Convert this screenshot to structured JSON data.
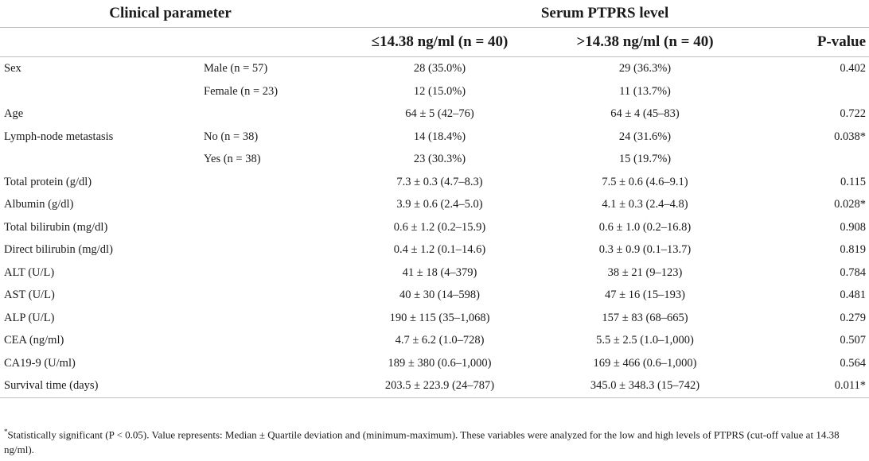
{
  "header": {
    "clinical_parameter": "Clinical parameter",
    "serum_level": "Serum PTPRS level",
    "low_group": "≤14.38 ng/ml (n = 40)",
    "high_group": ">14.38 ng/ml (n = 40)",
    "p_value": "P-value"
  },
  "rows": [
    {
      "param": "Sex",
      "sub": "Male (n = 57)",
      "low": "28 (35.0%)",
      "high": "29 (36.3%)",
      "p": "0.402"
    },
    {
      "param": "",
      "sub": "Female (n = 23)",
      "low": "12 (15.0%)",
      "high": "11 (13.7%)",
      "p": ""
    },
    {
      "param": "Age",
      "sub": "",
      "low": "64 ± 5 (42–76)",
      "high": "64 ± 4 (45–83)",
      "p": "0.722"
    },
    {
      "param": "Lymph-node metastasis",
      "sub": "No (n = 38)",
      "low": "14 (18.4%)",
      "high": "24 (31.6%)",
      "p": "0.038*"
    },
    {
      "param": "",
      "sub": "Yes (n = 38)",
      "low": "23 (30.3%)",
      "high": "15 (19.7%)",
      "p": ""
    },
    {
      "param": "Total protein (g/dl)",
      "sub": "",
      "low": "7.3 ± 0.3 (4.7–8.3)",
      "high": "7.5 ± 0.6 (4.6–9.1)",
      "p": "0.115"
    },
    {
      "param": "Albumin (g/dl)",
      "sub": "",
      "low": "3.9 ± 0.6 (2.4–5.0)",
      "high": "4.1 ± 0.3 (2.4–4.8)",
      "p": "0.028*"
    },
    {
      "param": "Total bilirubin (mg/dl)",
      "sub": "",
      "low": "0.6 ± 1.2 (0.2–15.9)",
      "high": "0.6 ± 1.0 (0.2–16.8)",
      "p": "0.908"
    },
    {
      "param": "Direct bilirubin (mg/dl)",
      "sub": "",
      "low": "0.4 ± 1.2 (0.1–14.6)",
      "high": "0.3 ± 0.9 (0.1–13.7)",
      "p": "0.819"
    },
    {
      "param": "ALT (U/L)",
      "sub": "",
      "low": "41 ± 18 (4–379)",
      "high": "38 ± 21 (9–123)",
      "p": "0.784"
    },
    {
      "param": "AST (U/L)",
      "sub": "",
      "low": "40 ± 30 (14–598)",
      "high": "47 ± 16 (15–193)",
      "p": "0.481"
    },
    {
      "param": "ALP (U/L)",
      "sub": "",
      "low": "190 ± 115 (35–1,068)",
      "high": "157 ± 83 (68–665)",
      "p": "0.279"
    },
    {
      "param": "CEA (ng/ml)",
      "sub": "",
      "low": "4.7 ± 6.2 (1.0–728)",
      "high": "5.5 ± 2.5 (1.0–1,000)",
      "p": "0.507"
    },
    {
      "param": "CA19-9 (U/ml)",
      "sub": "",
      "low": "189 ± 380 (0.6–1,000)",
      "high": "169 ± 466 (0.6–1,000)",
      "p": "0.564"
    },
    {
      "param": "Survival time (days)",
      "sub": "",
      "low": "203.5 ± 223.9 (24–787)",
      "high": "345.0 ± 348.3 (15–742)",
      "p": "0.011*"
    }
  ],
  "footnote": {
    "marker": "*",
    "text": "Statistically significant (P < 0.05). Value represents: Median ± Quartile deviation and (minimum-maximum). These variables were analyzed for the low and high levels of PTPRS (cut-off value at 14.38 ng/ml)."
  }
}
